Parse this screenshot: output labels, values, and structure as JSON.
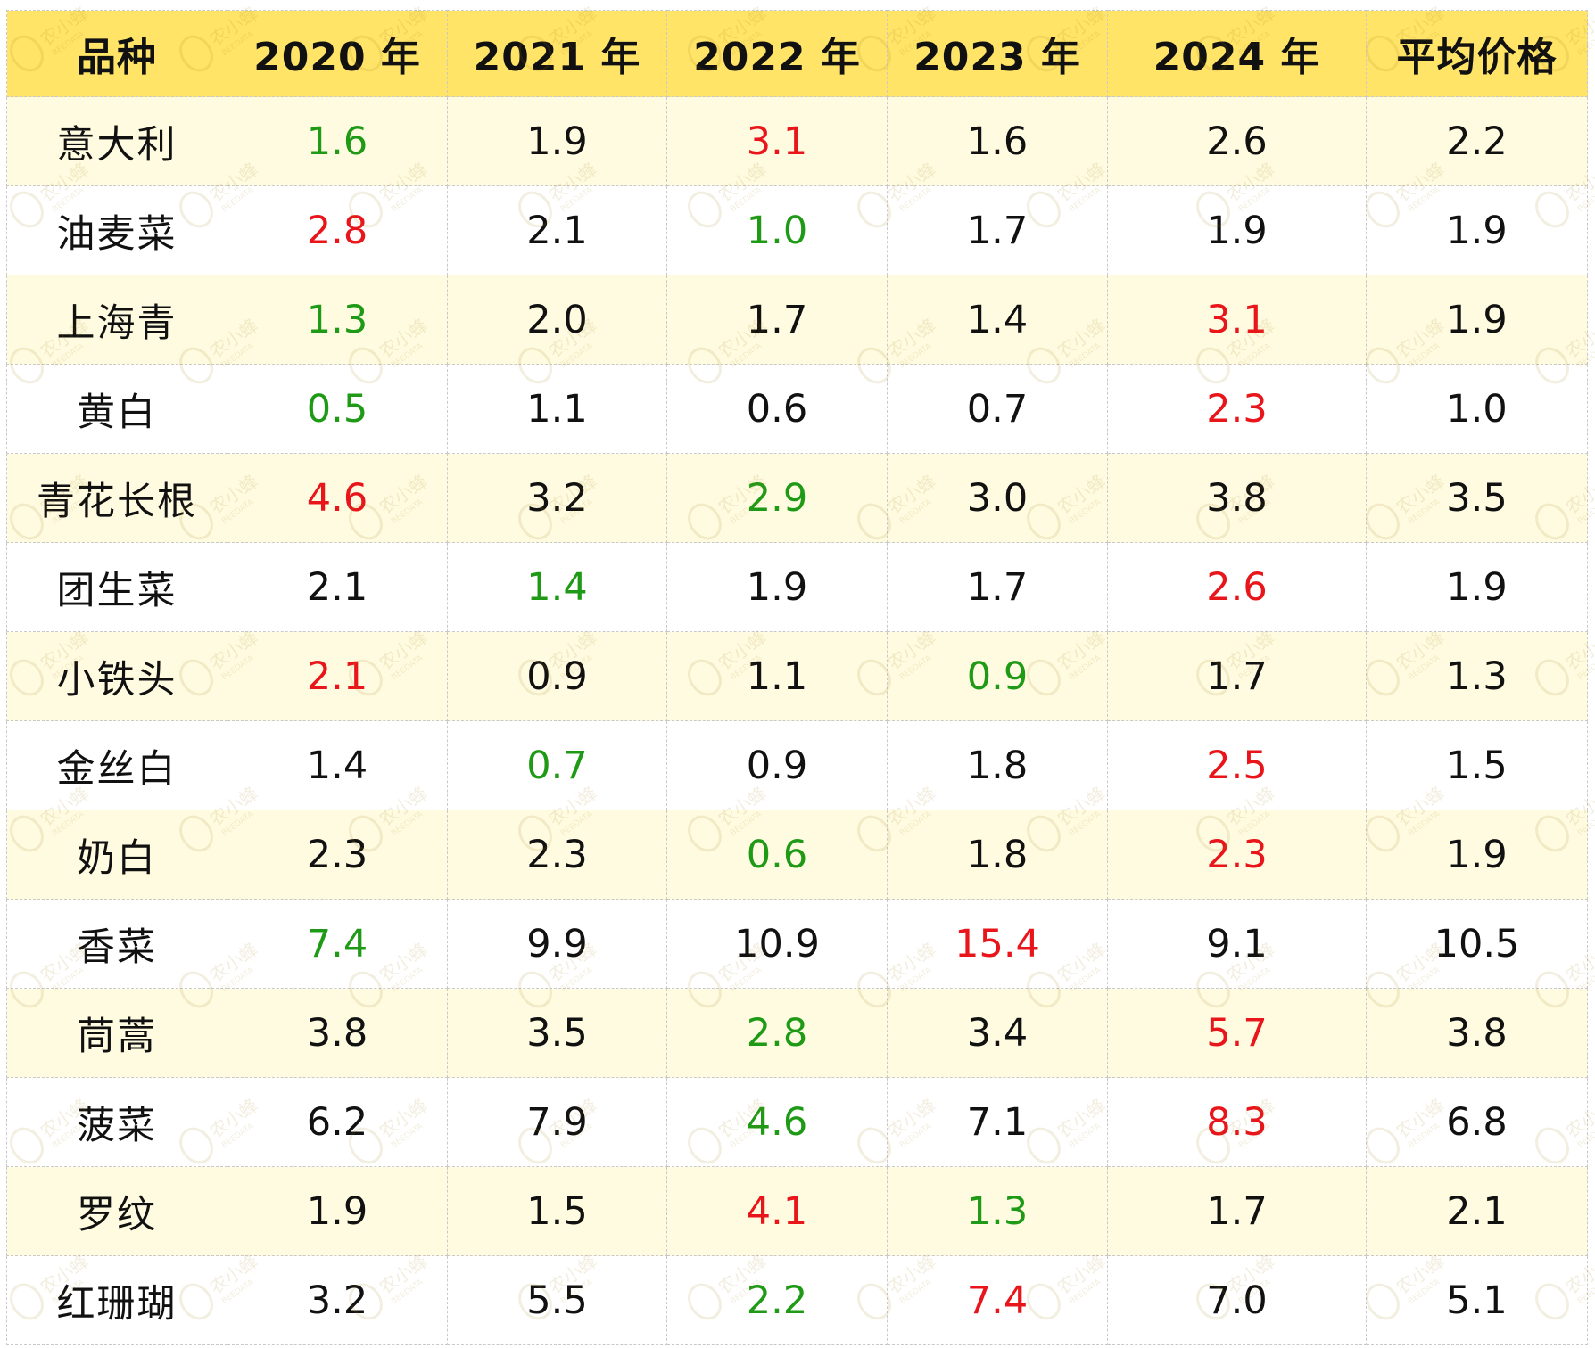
{
  "header": {
    "variety": "品种",
    "y2020": "2020 年",
    "y2021": "2021 年",
    "y2022": "2022 年",
    "y2023": "2023 年",
    "y2024": "2024 年",
    "avg": "平均价格"
  },
  "colors": {
    "header_bg": "#ffe468",
    "row_alt_bg": "#fffbe0",
    "high": "#e8161b",
    "low": "#1f9a16",
    "normal": "#111111"
  },
  "watermark": {
    "brand": "农小蜂",
    "sub": "BEEDATA"
  },
  "rows": [
    {
      "name": "意大利",
      "values": [
        "1.6",
        "1.9",
        "3.1",
        "1.6",
        "2.6",
        "2.2"
      ],
      "marks": [
        "low",
        "",
        "high",
        "",
        "",
        ""
      ]
    },
    {
      "name": "油麦菜",
      "values": [
        "2.8",
        "2.1",
        "1.0",
        "1.7",
        "1.9",
        "1.9"
      ],
      "marks": [
        "high",
        "",
        "low",
        "",
        "",
        ""
      ]
    },
    {
      "name": "上海青",
      "values": [
        "1.3",
        "2.0",
        "1.7",
        "1.4",
        "3.1",
        "1.9"
      ],
      "marks": [
        "low",
        "",
        "",
        "",
        "high",
        ""
      ]
    },
    {
      "name": "黄白",
      "values": [
        "0.5",
        "1.1",
        "0.6",
        "0.7",
        "2.3",
        "1.0"
      ],
      "marks": [
        "low",
        "",
        "",
        "",
        "high",
        ""
      ]
    },
    {
      "name": "青花长根",
      "values": [
        "4.6",
        "3.2",
        "2.9",
        "3.0",
        "3.8",
        "3.5"
      ],
      "marks": [
        "high",
        "",
        "low",
        "",
        "",
        ""
      ]
    },
    {
      "name": "团生菜",
      "values": [
        "2.1",
        "1.4",
        "1.9",
        "1.7",
        "2.6",
        "1.9"
      ],
      "marks": [
        "",
        "low",
        "",
        "",
        "high",
        ""
      ]
    },
    {
      "name": "小铁头",
      "values": [
        "2.1",
        "0.9",
        "1.1",
        "0.9",
        "1.7",
        "1.3"
      ],
      "marks": [
        "high",
        "",
        "",
        "low",
        "",
        ""
      ]
    },
    {
      "name": "金丝白",
      "values": [
        "1.4",
        "0.7",
        "0.9",
        "1.8",
        "2.5",
        "1.5"
      ],
      "marks": [
        "",
        "low",
        "",
        "",
        "high",
        ""
      ]
    },
    {
      "name": "奶白",
      "values": [
        "2.3",
        "2.3",
        "0.6",
        "1.8",
        "2.3",
        "1.9"
      ],
      "marks": [
        "",
        "",
        "low",
        "",
        "high",
        ""
      ]
    },
    {
      "name": "香菜",
      "values": [
        "7.4",
        "9.9",
        "10.9",
        "15.4",
        "9.1",
        "10.5"
      ],
      "marks": [
        "low",
        "",
        "",
        "high",
        "",
        ""
      ]
    },
    {
      "name": "茼蒿",
      "values": [
        "3.8",
        "3.5",
        "2.8",
        "3.4",
        "5.7",
        "3.8"
      ],
      "marks": [
        "",
        "",
        "low",
        "",
        "high",
        ""
      ]
    },
    {
      "name": "菠菜",
      "values": [
        "6.2",
        "7.9",
        "4.6",
        "7.1",
        "8.3",
        "6.8"
      ],
      "marks": [
        "",
        "",
        "low",
        "",
        "high",
        ""
      ]
    },
    {
      "name": "罗纹",
      "values": [
        "1.9",
        "1.5",
        "4.1",
        "1.3",
        "1.7",
        "2.1"
      ],
      "marks": [
        "",
        "",
        "high",
        "low",
        "",
        ""
      ]
    },
    {
      "name": "红珊瑚",
      "values": [
        "3.2",
        "5.5",
        "2.2",
        "7.4",
        "7.0",
        "5.1"
      ],
      "marks": [
        "",
        "",
        "low",
        "high",
        "",
        ""
      ]
    }
  ]
}
